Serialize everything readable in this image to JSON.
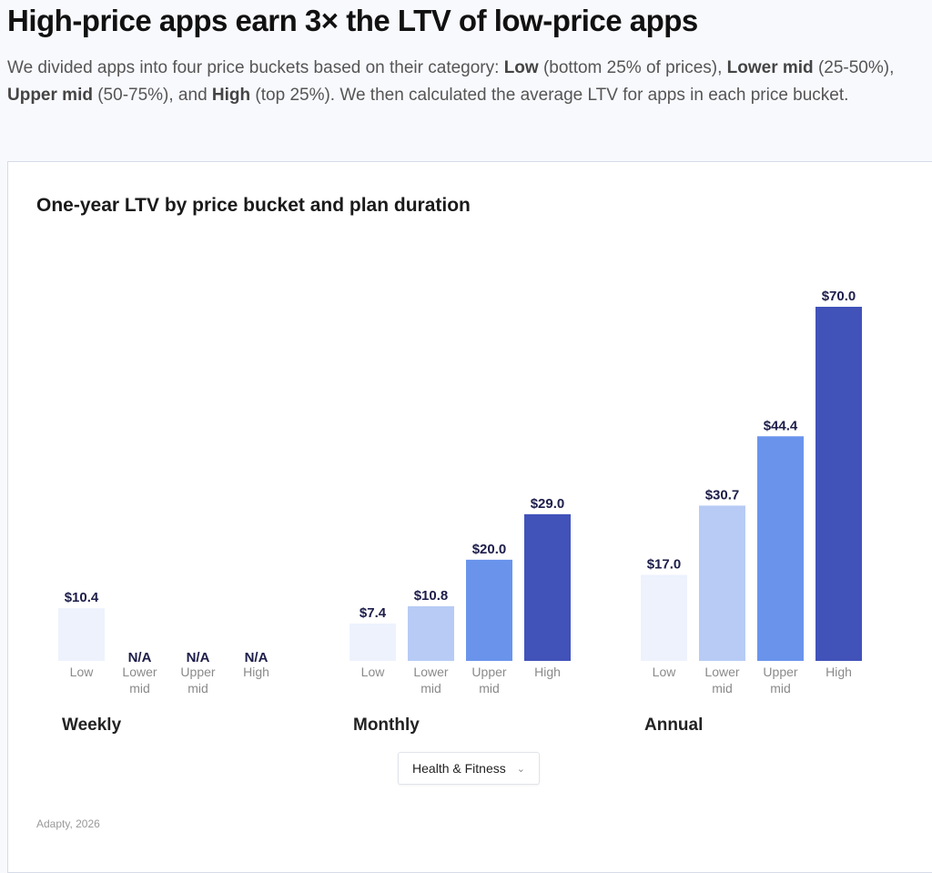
{
  "header": {
    "title": "High-price apps earn 3× the LTV of low-price apps",
    "intro_parts": [
      {
        "t": "We divided apps into four price buckets based on their category: ",
        "b": false
      },
      {
        "t": "Low",
        "b": true
      },
      {
        "t": " (bottom 25% of prices), ",
        "b": false
      },
      {
        "t": "Lower mid",
        "b": true
      },
      {
        "t": " (25-50%), ",
        "b": false
      },
      {
        "t": "Upper mid",
        "b": true
      },
      {
        "t": " (50-75%), and ",
        "b": false
      },
      {
        "t": "High",
        "b": true
      },
      {
        "t": " (top 25%). We then calculated the average LTV for apps in each price bucket.",
        "b": false
      }
    ]
  },
  "chart_data": {
    "type": "bar",
    "title": "One-year LTV by price bucket and plan duration",
    "categories": [
      [
        "Low"
      ],
      [
        "Lower",
        "mid"
      ],
      [
        "Upper",
        "mid"
      ],
      [
        "High"
      ]
    ],
    "groups": [
      {
        "name": "Weekly",
        "values": [
          10.4,
          null,
          null,
          null
        ],
        "labels": [
          "$10.4",
          "N/A",
          "N/A",
          "N/A"
        ]
      },
      {
        "name": "Monthly",
        "values": [
          7.4,
          10.8,
          20.0,
          29.0
        ],
        "labels": [
          "$7.4",
          "$10.8",
          "$20.0",
          "$29.0"
        ]
      },
      {
        "name": "Annual",
        "values": [
          17.0,
          30.7,
          44.4,
          70.0
        ],
        "labels": [
          "$17.0",
          "$30.7",
          "$44.4",
          "$70.0"
        ]
      }
    ],
    "colors": [
      "#edf2fd",
      "#b7cbf5",
      "#6a94ec",
      "#4152b9"
    ],
    "ylim": [
      0,
      70
    ],
    "grid": false,
    "legend": "none"
  },
  "filter": {
    "selected": "Health & Fitness",
    "icon": "chevron-down-icon"
  },
  "source": "Adapty, 2026"
}
